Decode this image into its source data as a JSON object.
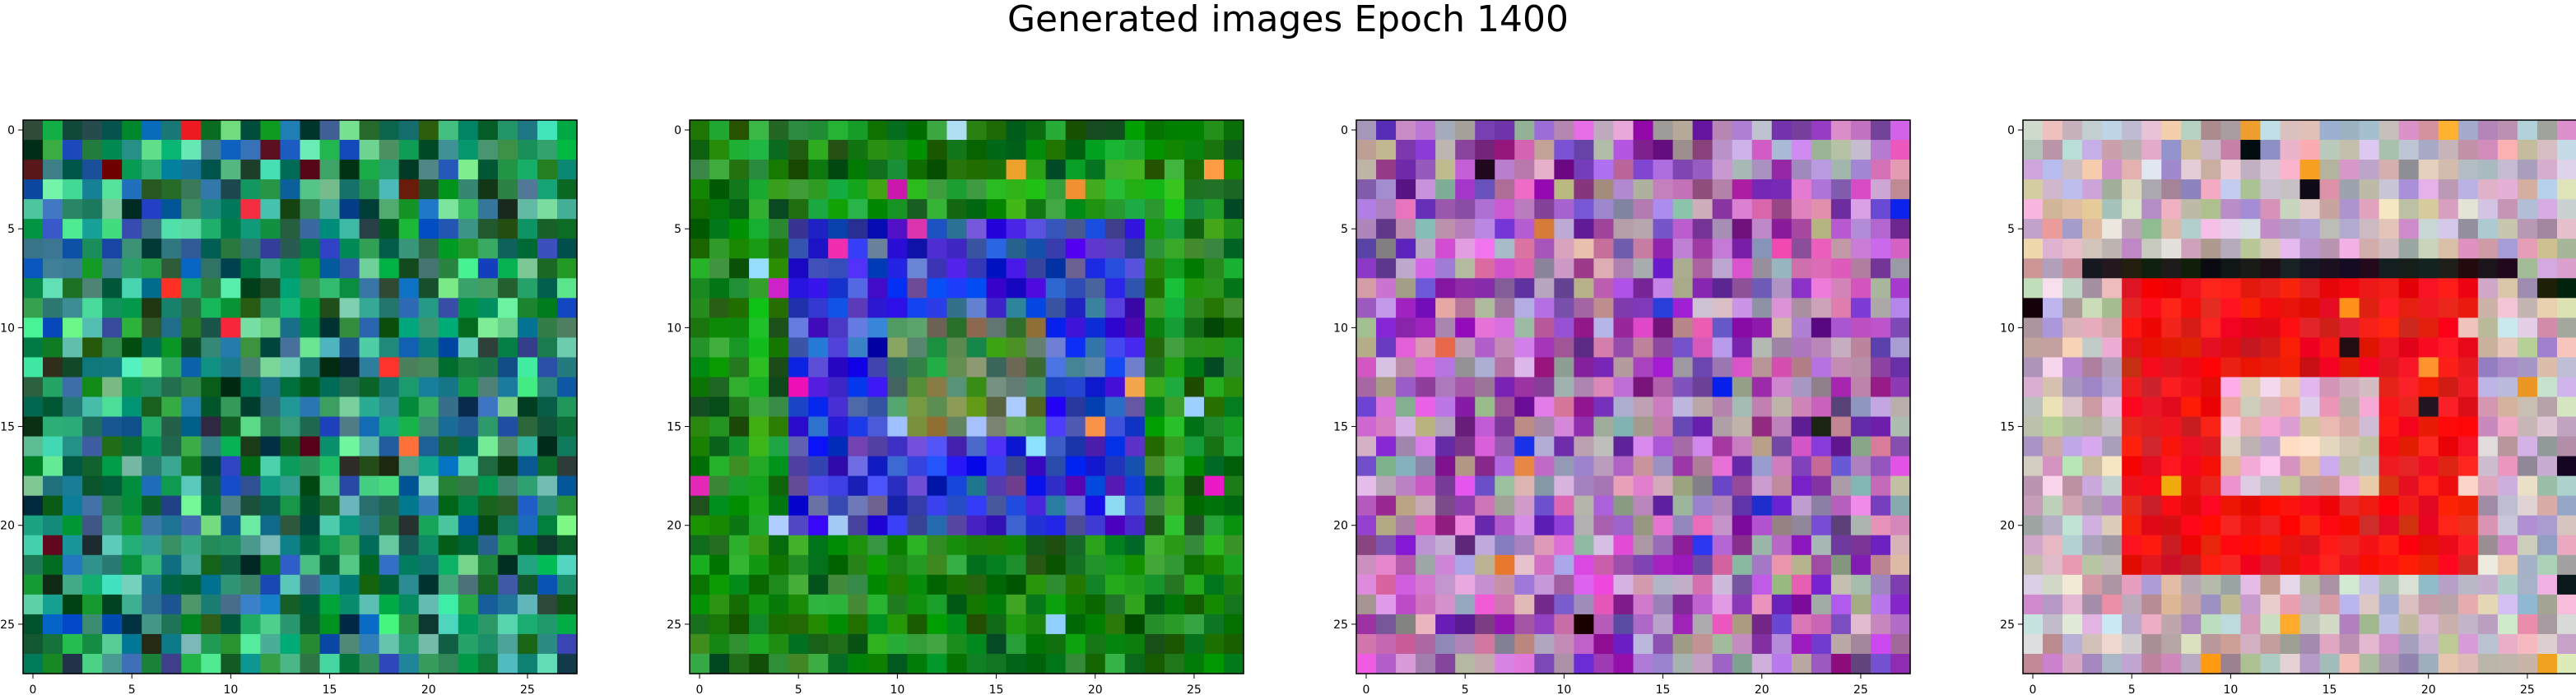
{
  "figure": {
    "title": "Generated images Epoch 1400"
  },
  "axes": {
    "x_ticks": [
      "0",
      "5",
      "10",
      "15",
      "20",
      "25"
    ],
    "y_ticks": [
      "0",
      "5",
      "10",
      "15",
      "20",
      "25"
    ]
  },
  "images": [
    {
      "index": 0,
      "grid_size": 28,
      "dominant_colors": [
        "#0b7a3a",
        "#1a9a5a",
        "#2f8f7a",
        "#0d4a2c",
        "#5ed6a0",
        "#1f5fa8"
      ],
      "accent_colors": [
        "#ff1f2f",
        "#ff7a2a",
        "#5a0a10"
      ],
      "description_colors_note": "green-teal noise"
    },
    {
      "index": 1,
      "grid_size": 28,
      "dominant_colors": [
        "#0a7a0a",
        "#138a13",
        "#0f5f0f",
        "#2f9f2f",
        "#1a1adf",
        "#3a3ab8"
      ],
      "accent_colors": [
        "#e01fc0",
        "#ffa040",
        "#9fd0ff"
      ],
      "description_colors_note": "green frame with blue square"
    },
    {
      "index": 2,
      "grid_size": 28,
      "dominant_colors": [
        "#b87ab8",
        "#c8a0c8",
        "#7a2a9a",
        "#d06ad0",
        "#a0a0a0",
        "#8a3ab8"
      ],
      "accent_colors": [
        "#101010",
        "#1a2adf",
        "#e07a40"
      ],
      "description_colors_note": "purple-pink noise"
    },
    {
      "index": 3,
      "grid_size": 28,
      "dominant_colors": [
        "#c8b0b8",
        "#b0a0b0",
        "#d8c8d0",
        "#ff1010",
        "#f01818",
        "#a090a0"
      ],
      "accent_colors": [
        "#101010",
        "#ffa020",
        "#e8c8c8"
      ],
      "description_colors_note": "pale border with red square"
    }
  ]
}
